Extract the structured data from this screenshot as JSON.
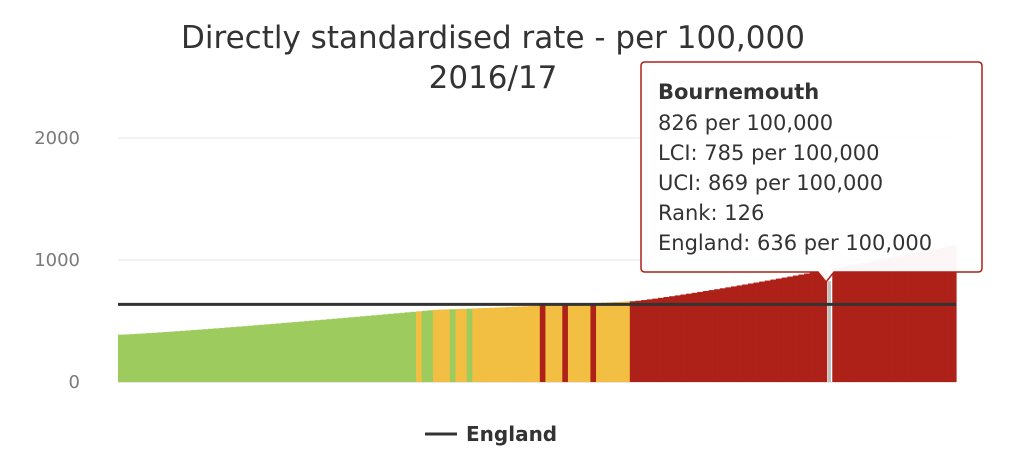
{
  "chart_data": {
    "type": "bar",
    "title": "Directly standardised rate - per 100,000",
    "subtitle": "2016/17",
    "xlabel": "",
    "ylabel": "",
    "ylim": [
      0,
      2000
    ],
    "y_ticks": [
      0,
      1000,
      2000
    ],
    "grid": true,
    "colors": {
      "green": "#9ecb5e",
      "amber": "#f2bf43",
      "red": "#ad2118",
      "benchmark": "#333333",
      "highlight": "#bfbfbf"
    },
    "bands": [
      {
        "count": 57,
        "from": 388,
        "to": 592,
        "color": "green"
      },
      {
        "count": 34,
        "from": 594,
        "to": 660,
        "color": "amber"
      },
      {
        "count": 58,
        "from": 662,
        "to": 1120,
        "color": "red"
      }
    ],
    "overrides": [
      {
        "index": 53,
        "color": "amber"
      },
      {
        "index": 56,
        "color": "amber"
      },
      {
        "index": 59,
        "color": "green"
      },
      {
        "index": 62,
        "color": "green"
      },
      {
        "index": 75,
        "color": "red"
      },
      {
        "index": 79,
        "color": "red"
      },
      {
        "index": 84,
        "color": "red"
      },
      {
        "index": 88,
        "color": "amber"
      },
      {
        "index": 89,
        "color": "amber"
      }
    ],
    "highlight_index": 126,
    "highlight_value": 826,
    "series": [
      {
        "name": "England",
        "type": "line",
        "value": 636
      }
    ],
    "legend": {
      "position": "bottom-center",
      "items": [
        "England"
      ]
    },
    "tooltip": {
      "title": "Bournemouth",
      "lines": [
        "826 per 100,000",
        "LCI: 785 per 100,000",
        "UCI: 869 per 100,000",
        "Rank: 126",
        "England: 636 per 100,000"
      ]
    }
  }
}
